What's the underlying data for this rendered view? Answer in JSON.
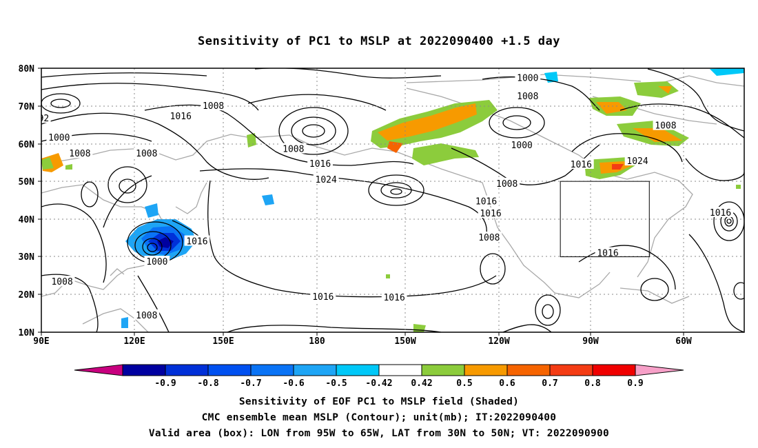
{
  "title": "Sensitivity of PC1 to MSLP at 2022090400 +1.5 day",
  "lat_labels": [
    "80N",
    "70N",
    "60N",
    "50N",
    "40N",
    "30N",
    "20N",
    "10N"
  ],
  "lon_labels": [
    "90E",
    "120E",
    "150E",
    "180",
    "150W",
    "120W",
    "90W",
    "60W"
  ],
  "contour_labels": [
    {
      "text": "1000",
      "lon": 254,
      "lat": 77.5
    },
    {
      "text": "1008",
      "lon": 254,
      "lat": 72.7
    },
    {
      "text": "1008",
      "lon": 148,
      "lat": 70.1
    },
    {
      "text": "92",
      "lon": 90.8,
      "lat": 66.8
    },
    {
      "text": "1016",
      "lon": 137,
      "lat": 67.4
    },
    {
      "text": "1000",
      "lon": 96,
      "lat": 61.7
    },
    {
      "text": "1008",
      "lon": 103,
      "lat": 57.5
    },
    {
      "text": "1008",
      "lon": 125.5,
      "lat": 57.5
    },
    {
      "text": "1008",
      "lon": 175,
      "lat": 58.7
    },
    {
      "text": "1016",
      "lon": 184,
      "lat": 54.8
    },
    {
      "text": "1024",
      "lon": 186,
      "lat": 50.6
    },
    {
      "text": "1000",
      "lon": 252,
      "lat": 59.7
    },
    {
      "text": "1016",
      "lon": 272,
      "lat": 54.6
    },
    {
      "text": "1024",
      "lon": 291,
      "lat": 55.5
    },
    {
      "text": "1008",
      "lon": 300.5,
      "lat": 64.9
    },
    {
      "text": "1016",
      "lon": 240,
      "lat": 44.8
    },
    {
      "text": "1016",
      "lon": 241.5,
      "lat": 41.6
    },
    {
      "text": "1008",
      "lon": 247,
      "lat": 49.5
    },
    {
      "text": "1016",
      "lon": 142.5,
      "lat": 34.2
    },
    {
      "text": "1000",
      "lon": 129,
      "lat": 28.8
    },
    {
      "text": "1008",
      "lon": 241,
      "lat": 35.2
    },
    {
      "text": "1008",
      "lon": 97,
      "lat": 23.5
    },
    {
      "text": "1008",
      "lon": 125.5,
      "lat": 14.6
    },
    {
      "text": "1016",
      "lon": 185,
      "lat": 19.5
    },
    {
      "text": "1016",
      "lon": 209,
      "lat": 19.3
    },
    {
      "text": "1016",
      "lon": 281,
      "lat": 31.1
    },
    {
      "text": "1016",
      "lon": 319,
      "lat": 41.8
    }
  ],
  "valid_box": {
    "lon_min": -95,
    "lon_max": -65,
    "lat_min": 30,
    "lat_max": 50
  },
  "colorbar": {
    "labels": [
      "-0.9",
      "-0.8",
      "-0.7",
      "-0.6",
      "-0.5",
      "-0.42",
      "0.42",
      "0.5",
      "0.6",
      "0.7",
      "0.8",
      "0.9"
    ],
    "colors": [
      "#c8007f",
      "#0000a0",
      "#0030d8",
      "#0050f0",
      "#0a73f5",
      "#1ea5f5",
      "#00c8f8",
      "#ffffff",
      "#8ccc3c",
      "#f79a00",
      "#f66400",
      "#f43c14",
      "#f00000",
      "#f7a0c8"
    ]
  },
  "captions": [
    "Sensitivity of EOF PC1 to MSLP field (Shaded)",
    "CMC ensemble mean MSLP (Contour); unit(mb); IT:2022090400",
    "Valid area (box): LON from 95W to 65W, LAT from 30N to 50N; VT: 2022090900"
  ]
}
